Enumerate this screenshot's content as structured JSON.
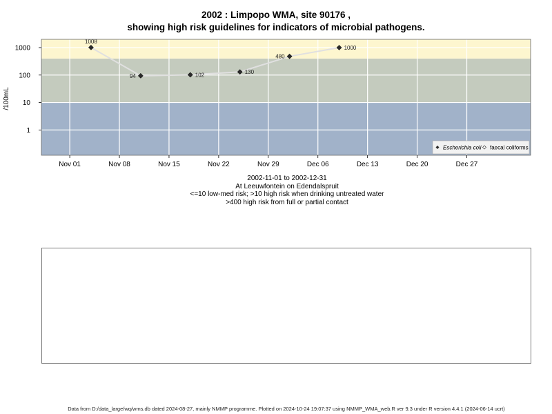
{
  "titles": {
    "line1": "2002 : Limpopo WMA, site 90176 ,",
    "line2": "showing high risk guidelines for indicators of microbial pathogens."
  },
  "captions": {
    "date_range": "2002-11-01 to 2002-12-31",
    "location": "At Leeuwfontein on Edendalspruit",
    "guideline1": "<=10 low-med risk; >10 high risk when drinking untreated water",
    "guideline2": ">400 high risk from full or partial contact"
  },
  "footer": "Data from D:/data_large/wq/wms.db dated 2024-08-27, mainly NMMP programme. Plotted on 2024-10-24 19:07:37 using NMMP_WMA_web.R ver 9.3 under R version 4.4.1 (2024-06-14 ucrt)",
  "colors": {
    "band_low": "#a1b2c9",
    "band_mid": "#c4cbbe",
    "band_high": "#fdf6cf",
    "line": "#e0e0e0",
    "point_ecoli": "#2a2a2a",
    "grid": "#ffffff"
  },
  "chart_data": {
    "type": "line",
    "title": "2002 : Limpopo WMA, site 90176 , showing high risk guidelines for indicators of microbial pathogens.",
    "ylabel": "/100mL",
    "xlabel": "",
    "y_scale": "log",
    "ylim": [
      0.12,
      2000
    ],
    "xlim": [
      "2002-10-28",
      "2003-01-05"
    ],
    "y_ticks": [
      1,
      10,
      100,
      1000
    ],
    "y_tick_labels": [
      "1",
      "10",
      "100",
      "1000"
    ],
    "x_ticks": [
      "2002-11-01",
      "2002-11-08",
      "2002-11-15",
      "2002-11-22",
      "2002-11-29",
      "2002-12-06",
      "2002-12-13",
      "2002-12-20",
      "2002-12-27"
    ],
    "x_tick_labels": [
      "Nov 01",
      "Nov 08",
      "Nov 15",
      "Nov 22",
      "Nov 29",
      "Dec 06",
      "Dec 13",
      "Dec 20",
      "Dec 27"
    ],
    "grid": true,
    "risk_bands": [
      {
        "from": 0,
        "to": 10
      },
      {
        "from": 10,
        "to": 400
      },
      {
        "from": 400,
        "to": 2000
      }
    ],
    "series": [
      {
        "name": "Escherichia coli",
        "marker": "filled-diamond",
        "points": [
          {
            "x": "2002-11-04",
            "y": 1008,
            "label": "1008"
          },
          {
            "x": "2002-11-11",
            "y": 94,
            "label": "94"
          },
          {
            "x": "2002-11-18",
            "y": 102,
            "label": "102"
          },
          {
            "x": "2002-11-25",
            "y": 130,
            "label": "130"
          },
          {
            "x": "2002-12-02",
            "y": 480,
            "label": "480"
          },
          {
            "x": "2002-12-09",
            "y": 1000,
            "label": "1000"
          }
        ]
      },
      {
        "name": "faecal coliforms",
        "marker": "open-diamond",
        "points": []
      }
    ],
    "legend": {
      "position": "bottom-right"
    }
  }
}
